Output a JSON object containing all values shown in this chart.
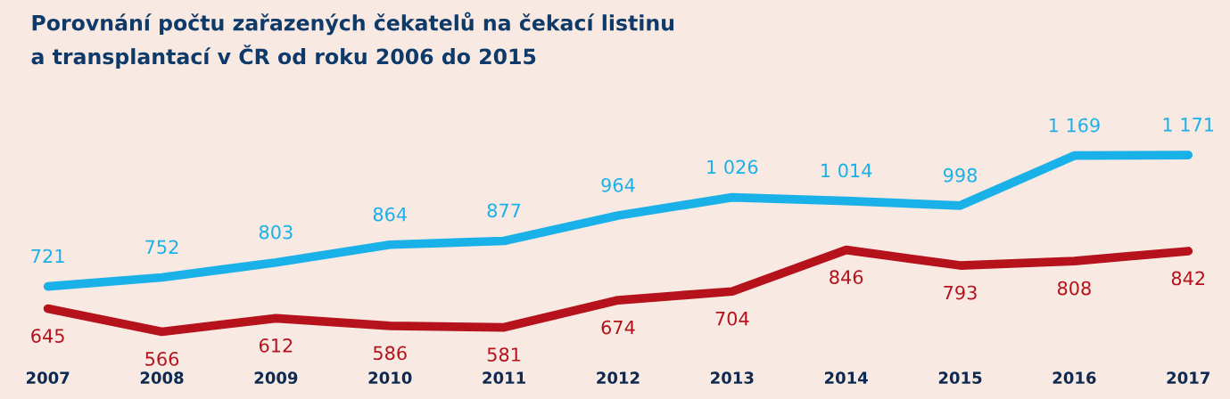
{
  "chart_data": {
    "type": "line",
    "title": "Porovnání počtu zařazených čekatelů na čekací listinu\na transplantací v ČR od roku 2006 do 2015",
    "categories": [
      "2007",
      "2008",
      "2009",
      "2010",
      "2011",
      "2012",
      "2013",
      "2014",
      "2015",
      "2016",
      "2017"
    ],
    "series": [
      {
        "color": "#1ab0e8",
        "values": [
          721,
          752,
          803,
          864,
          877,
          964,
          1026,
          1014,
          998,
          1169,
          1171
        ],
        "value_labels": [
          "721",
          "752",
          "803",
          "864",
          "877",
          "964",
          "1 026",
          "1 014",
          "998",
          "1 169",
          "1 171"
        ]
      },
      {
        "color": "#b5121b",
        "values": [
          645,
          566,
          612,
          586,
          581,
          674,
          704,
          846,
          793,
          808,
          842
        ],
        "value_labels": [
          "645",
          "566",
          "612",
          "586",
          "581",
          "674",
          "704",
          "846",
          "793",
          "808",
          "842"
        ]
      }
    ],
    "grid": false,
    "legend": false,
    "marker": "none",
    "line_style": "solid",
    "tick_labels": "x"
  }
}
